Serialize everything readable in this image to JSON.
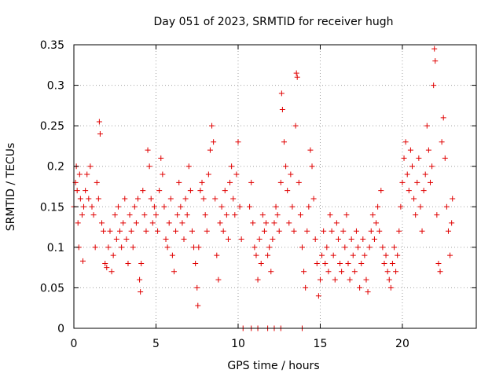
{
  "chart_data": {
    "type": "scatter",
    "title": "Day 051 of 2023, SRMTID for receiver hugh",
    "xlabel": "GPS time / hours",
    "ylabel": "SRMTID / TECUs",
    "xlim": [
      0,
      24.5
    ],
    "ylim": [
      0,
      0.35
    ],
    "x_ticks": [
      0,
      5,
      10,
      15,
      20
    ],
    "x_tick_labels": [
      "0",
      "5",
      "10",
      "15",
      "20"
    ],
    "y_ticks": [
      0,
      0.05,
      0.1,
      0.15,
      0.2,
      0.25,
      0.3,
      0.35
    ],
    "y_tick_labels": [
      "0",
      "0.05",
      "0.1",
      "0.15",
      "0.2",
      "0.25",
      "0.3",
      "0.35"
    ],
    "grid": true,
    "marker": "plus",
    "color": "#e00000",
    "series": [
      {
        "name": "SRMTID",
        "points": [
          [
            0.0,
            0.15
          ],
          [
            0.1,
            0.18
          ],
          [
            0.15,
            0.2
          ],
          [
            0.2,
            0.17
          ],
          [
            0.25,
            0.13
          ],
          [
            0.3,
            0.1
          ],
          [
            0.35,
            0.19
          ],
          [
            0.4,
            0.16
          ],
          [
            0.5,
            0.14
          ],
          [
            0.55,
            0.083
          ],
          [
            0.6,
            0.15
          ],
          [
            0.7,
            0.17
          ],
          [
            0.8,
            0.19
          ],
          [
            0.9,
            0.16
          ],
          [
            1.0,
            0.2
          ],
          [
            1.1,
            0.15
          ],
          [
            1.2,
            0.14
          ],
          [
            1.3,
            0.1
          ],
          [
            1.4,
            0.18
          ],
          [
            1.5,
            0.16
          ],
          [
            1.55,
            0.255
          ],
          [
            1.6,
            0.24
          ],
          [
            1.7,
            0.13
          ],
          [
            1.8,
            0.12
          ],
          [
            1.9,
            0.08
          ],
          [
            2.0,
            0.075
          ],
          [
            2.1,
            0.1
          ],
          [
            2.2,
            0.12
          ],
          [
            2.3,
            0.07
          ],
          [
            2.4,
            0.09
          ],
          [
            2.5,
            0.14
          ],
          [
            2.6,
            0.11
          ],
          [
            2.7,
            0.15
          ],
          [
            2.8,
            0.12
          ],
          [
            2.9,
            0.1
          ],
          [
            3.0,
            0.13
          ],
          [
            3.1,
            0.16
          ],
          [
            3.2,
            0.11
          ],
          [
            3.3,
            0.08
          ],
          [
            3.4,
            0.14
          ],
          [
            3.5,
            0.12
          ],
          [
            3.6,
            0.1
          ],
          [
            3.7,
            0.15
          ],
          [
            3.8,
            0.13
          ],
          [
            3.9,
            0.16
          ],
          [
            4.0,
            0.06
          ],
          [
            4.05,
            0.045
          ],
          [
            4.1,
            0.08
          ],
          [
            4.2,
            0.17
          ],
          [
            4.3,
            0.14
          ],
          [
            4.4,
            0.12
          ],
          [
            4.5,
            0.22
          ],
          [
            4.6,
            0.2
          ],
          [
            4.7,
            0.16
          ],
          [
            4.8,
            0.13
          ],
          [
            4.9,
            0.15
          ],
          [
            5.0,
            0.14
          ],
          [
            5.1,
            0.12
          ],
          [
            5.2,
            0.17
          ],
          [
            5.3,
            0.21
          ],
          [
            5.4,
            0.19
          ],
          [
            5.5,
            0.15
          ],
          [
            5.6,
            0.11
          ],
          [
            5.7,
            0.1
          ],
          [
            5.8,
            0.13
          ],
          [
            5.9,
            0.16
          ],
          [
            6.0,
            0.09
          ],
          [
            6.1,
            0.07
          ],
          [
            6.2,
            0.12
          ],
          [
            6.3,
            0.14
          ],
          [
            6.4,
            0.18
          ],
          [
            6.5,
            0.15
          ],
          [
            6.6,
            0.13
          ],
          [
            6.7,
            0.11
          ],
          [
            6.8,
            0.16
          ],
          [
            6.9,
            0.14
          ],
          [
            7.0,
            0.2
          ],
          [
            7.1,
            0.17
          ],
          [
            7.2,
            0.12
          ],
          [
            7.3,
            0.1
          ],
          [
            7.4,
            0.08
          ],
          [
            7.5,
            0.05
          ],
          [
            7.55,
            0.028
          ],
          [
            7.6,
            0.1
          ],
          [
            7.7,
            0.17
          ],
          [
            7.8,
            0.18
          ],
          [
            7.9,
            0.16
          ],
          [
            8.0,
            0.14
          ],
          [
            8.1,
            0.12
          ],
          [
            8.2,
            0.19
          ],
          [
            8.3,
            0.22
          ],
          [
            8.4,
            0.25
          ],
          [
            8.5,
            0.23
          ],
          [
            8.6,
            0.16
          ],
          [
            8.7,
            0.09
          ],
          [
            8.8,
            0.06
          ],
          [
            8.9,
            0.13
          ],
          [
            9.0,
            0.15
          ],
          [
            9.1,
            0.12
          ],
          [
            9.2,
            0.17
          ],
          [
            9.3,
            0.14
          ],
          [
            9.4,
            0.11
          ],
          [
            9.5,
            0.18
          ],
          [
            9.6,
            0.2
          ],
          [
            9.7,
            0.16
          ],
          [
            9.8,
            0.14
          ],
          [
            9.9,
            0.19
          ],
          [
            10.0,
            0.23
          ],
          [
            10.1,
            0.15
          ],
          [
            10.2,
            0.11
          ],
          [
            10.3,
            0.0
          ],
          [
            10.8,
            0.0
          ],
          [
            11.2,
            0.0
          ],
          [
            11.8,
            0.0
          ],
          [
            12.2,
            0.0
          ],
          [
            12.6,
            0.0
          ],
          [
            13.9,
            0.0
          ],
          [
            10.7,
            0.15
          ],
          [
            10.8,
            0.18
          ],
          [
            10.9,
            0.13
          ],
          [
            11.0,
            0.1
          ],
          [
            11.1,
            0.09
          ],
          [
            11.2,
            0.06
          ],
          [
            11.3,
            0.11
          ],
          [
            11.4,
            0.08
          ],
          [
            11.5,
            0.14
          ],
          [
            11.6,
            0.12
          ],
          [
            11.7,
            0.13
          ],
          [
            11.8,
            0.09
          ],
          [
            11.9,
            0.1
          ],
          [
            12.0,
            0.07
          ],
          [
            12.1,
            0.11
          ],
          [
            12.2,
            0.13
          ],
          [
            12.3,
            0.15
          ],
          [
            12.4,
            0.14
          ],
          [
            12.5,
            0.12
          ],
          [
            12.6,
            0.18
          ],
          [
            12.65,
            0.29
          ],
          [
            12.7,
            0.27
          ],
          [
            12.8,
            0.23
          ],
          [
            12.9,
            0.2
          ],
          [
            13.0,
            0.17
          ],
          [
            13.1,
            0.13
          ],
          [
            13.2,
            0.19
          ],
          [
            13.3,
            0.15
          ],
          [
            13.4,
            0.12
          ],
          [
            13.5,
            0.25
          ],
          [
            13.55,
            0.315
          ],
          [
            13.6,
            0.31
          ],
          [
            13.7,
            0.18
          ],
          [
            13.8,
            0.14
          ],
          [
            13.9,
            0.1
          ],
          [
            14.0,
            0.07
          ],
          [
            14.1,
            0.05
          ],
          [
            14.2,
            0.12
          ],
          [
            14.3,
            0.15
          ],
          [
            14.4,
            0.22
          ],
          [
            14.5,
            0.2
          ],
          [
            14.6,
            0.16
          ],
          [
            14.7,
            0.11
          ],
          [
            14.8,
            0.08
          ],
          [
            14.9,
            0.04
          ],
          [
            15.0,
            0.06
          ],
          [
            15.1,
            0.09
          ],
          [
            15.2,
            0.12
          ],
          [
            15.3,
            0.08
          ],
          [
            15.4,
            0.1
          ],
          [
            15.5,
            0.07
          ],
          [
            15.6,
            0.14
          ],
          [
            15.7,
            0.12
          ],
          [
            15.8,
            0.09
          ],
          [
            15.9,
            0.06
          ],
          [
            16.0,
            0.13
          ],
          [
            16.1,
            0.11
          ],
          [
            16.2,
            0.08
          ],
          [
            16.3,
            0.07
          ],
          [
            16.4,
            0.12
          ],
          [
            16.5,
            0.1
          ],
          [
            16.6,
            0.14
          ],
          [
            16.7,
            0.08
          ],
          [
            16.8,
            0.06
          ],
          [
            16.9,
            0.11
          ],
          [
            17.0,
            0.09
          ],
          [
            17.1,
            0.07
          ],
          [
            17.2,
            0.12
          ],
          [
            17.3,
            0.1
          ],
          [
            17.4,
            0.05
          ],
          [
            17.5,
            0.08
          ],
          [
            17.6,
            0.11
          ],
          [
            17.7,
            0.09
          ],
          [
            17.8,
            0.06
          ],
          [
            17.9,
            0.045
          ],
          [
            18.0,
            0.1
          ],
          [
            18.1,
            0.12
          ],
          [
            18.2,
            0.14
          ],
          [
            18.3,
            0.11
          ],
          [
            18.4,
            0.13
          ],
          [
            18.5,
            0.15
          ],
          [
            18.6,
            0.12
          ],
          [
            18.7,
            0.17
          ],
          [
            18.8,
            0.1
          ],
          [
            18.9,
            0.08
          ],
          [
            19.0,
            0.09
          ],
          [
            19.1,
            0.07
          ],
          [
            19.2,
            0.06
          ],
          [
            19.3,
            0.05
          ],
          [
            19.4,
            0.08
          ],
          [
            19.5,
            0.1
          ],
          [
            19.6,
            0.07
          ],
          [
            19.7,
            0.09
          ],
          [
            19.8,
            0.12
          ],
          [
            19.9,
            0.15
          ],
          [
            20.0,
            0.18
          ],
          [
            20.1,
            0.21
          ],
          [
            20.2,
            0.23
          ],
          [
            20.3,
            0.19
          ],
          [
            20.4,
            0.17
          ],
          [
            20.5,
            0.22
          ],
          [
            20.6,
            0.2
          ],
          [
            20.7,
            0.16
          ],
          [
            20.8,
            0.14
          ],
          [
            20.9,
            0.18
          ],
          [
            21.0,
            0.21
          ],
          [
            21.1,
            0.15
          ],
          [
            21.2,
            0.12
          ],
          [
            21.3,
            0.17
          ],
          [
            21.4,
            0.19
          ],
          [
            21.5,
            0.25
          ],
          [
            21.6,
            0.22
          ],
          [
            21.7,
            0.18
          ],
          [
            21.8,
            0.2
          ],
          [
            21.9,
            0.3
          ],
          [
            21.95,
            0.345
          ],
          [
            22.0,
            0.33
          ],
          [
            22.1,
            0.14
          ],
          [
            22.2,
            0.08
          ],
          [
            22.3,
            0.07
          ],
          [
            22.4,
            0.23
          ],
          [
            22.5,
            0.26
          ],
          [
            22.6,
            0.21
          ],
          [
            22.7,
            0.15
          ],
          [
            22.8,
            0.12
          ],
          [
            22.9,
            0.09
          ],
          [
            23.0,
            0.13
          ],
          [
            23.05,
            0.16
          ]
        ]
      }
    ]
  }
}
